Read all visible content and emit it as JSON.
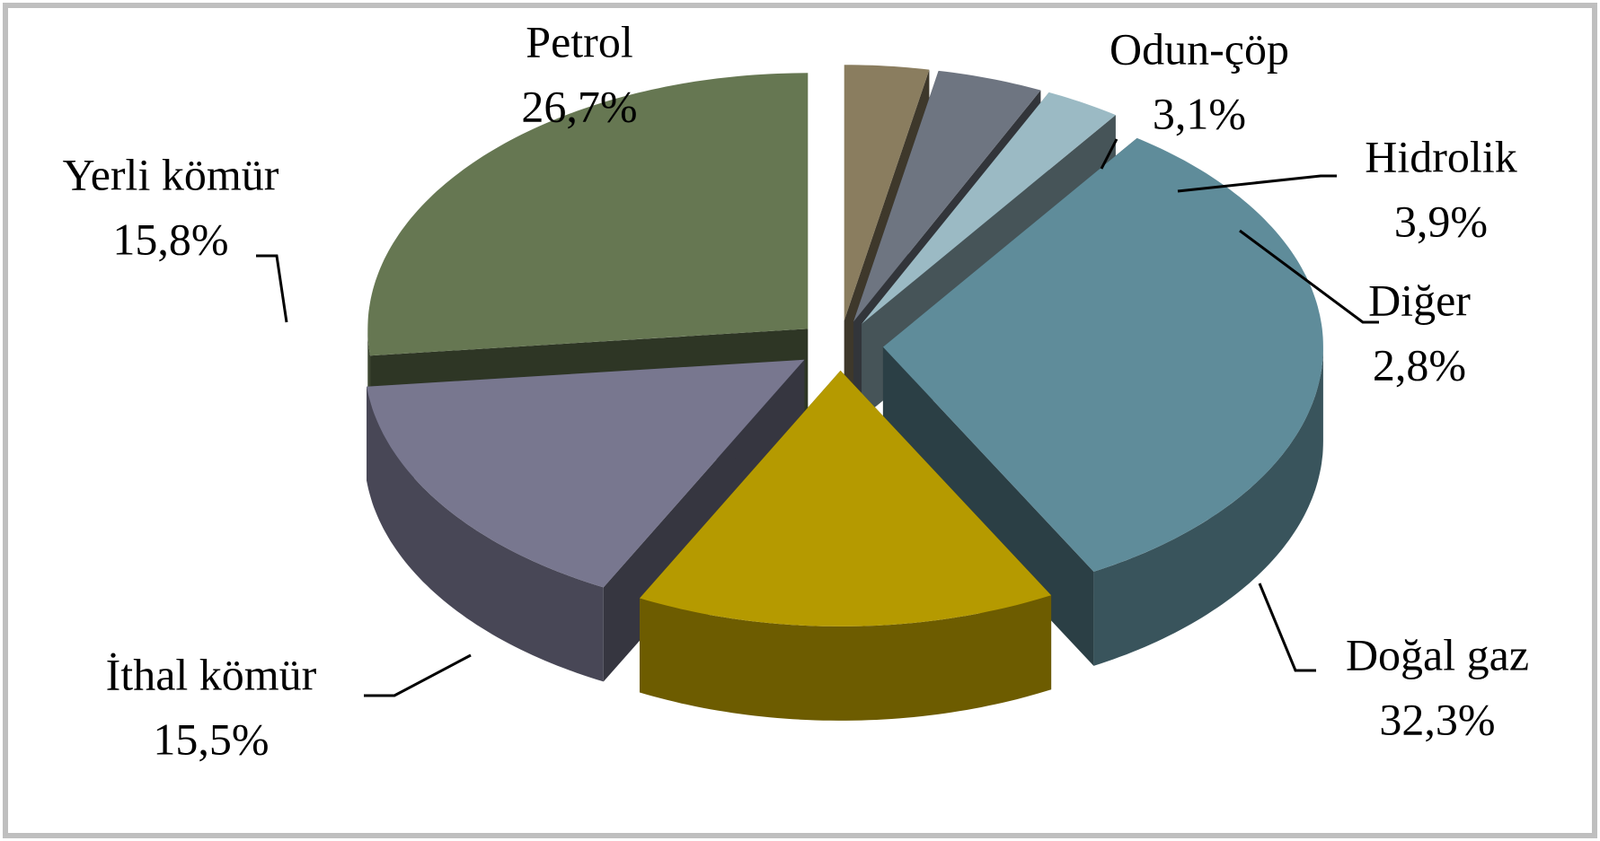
{
  "chart_data": {
    "type": "pie",
    "categories": [
      "Odun-çöp",
      "Hidrolik",
      "Diğer",
      "Doğal gaz",
      "İthal kömür",
      "Yerli kömür",
      "Petrol"
    ],
    "values": [
      3.1,
      3.9,
      2.8,
      32.3,
      15.5,
      15.8,
      26.7
    ],
    "value_labels": [
      "3,1%",
      "3,9%",
      "2,8%",
      "32,3%",
      "15,5%",
      "15,8%",
      "26,7%"
    ],
    "colors": [
      "#8a7d5f",
      "#6e7581",
      "#9bbac4",
      "#5f8c9a",
      "#b59a00",
      "#78778f",
      "#667752"
    ]
  }
}
